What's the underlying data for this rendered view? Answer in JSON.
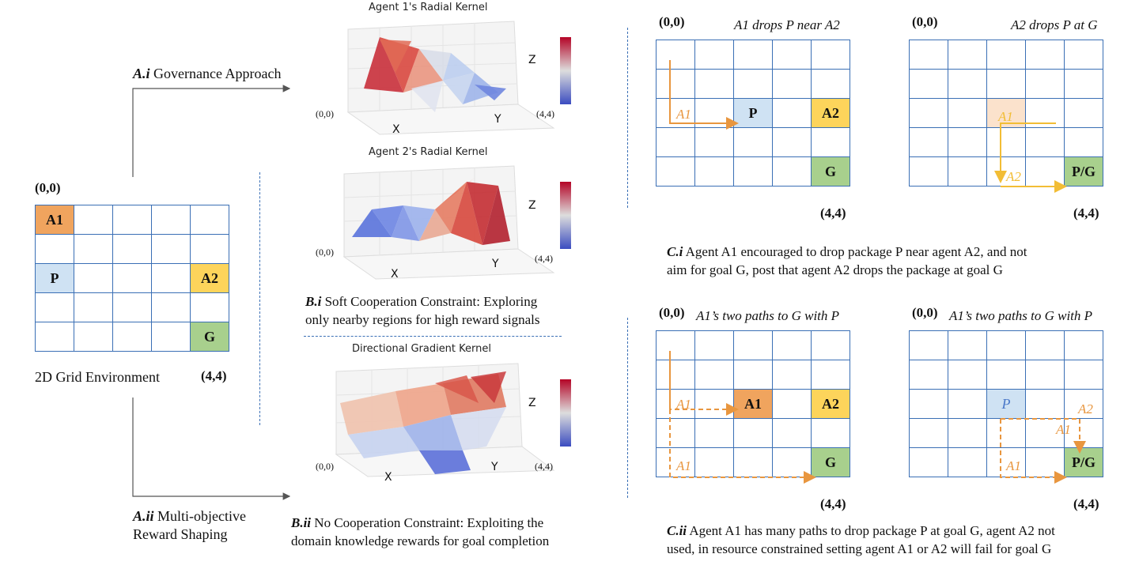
{
  "env": {
    "origin": "(0,0)",
    "end": "(4,4)",
    "caption": "2D Grid Environment",
    "cells": {
      "a1": "A1",
      "p": "P",
      "a2": "A2",
      "g": "G"
    }
  },
  "approaches": {
    "ai_bold": "A.i",
    "ai_text": " Governance Approach",
    "aii_bold": "A.ii",
    "aii_text1": " Multi-objective",
    "aii_text2": "Reward Shaping"
  },
  "kernels": {
    "k1_title": "Agent 1's Radial Kernel",
    "k2_title": "Agent 2's Radial Kernel",
    "k3_title": "Directional Gradient Kernel",
    "axis_x": "X",
    "axis_y": "Y",
    "axis_z": "Z",
    "origin": "(0,0)",
    "end": "(4,4)",
    "bi_bold": "B.i",
    "bi_text1": " Soft Cooperation Constraint: Exploring",
    "bi_text2": "only nearby regions for high reward signals",
    "bii_bold": "B.ii",
    "bii_text1": " No Cooperation Constraint: Exploiting the",
    "bii_text2": "domain knowledge rewards for goal completion"
  },
  "panels": {
    "origin": "(0,0)",
    "end": "(4,4)",
    "c1_left_title": "A1 drops P near A2",
    "c1_right_title": "A2 drops P at G",
    "c2_left_title": "A1’s two paths to G with P",
    "c2_right_title": "A1’s two paths to G with P",
    "cells": {
      "a1": "A1",
      "a2": "A2",
      "p": "P",
      "g": "G",
      "pg": "P/G"
    },
    "path_a1": "A1",
    "path_a2": "A2",
    "ci_bold": "C.i",
    "ci_line1": " Agent A1 encouraged to drop package P near agent A2, and not",
    "ci_line2": "aim for goal G, post that agent A2 drops the package at goal G",
    "cii_bold": "C.ii",
    "cii_line1": " Agent A1 has many paths to drop package P at goal G, agent A2 not",
    "cii_line2": "used, in resource constrained setting agent A1 or A2 will fail for goal G"
  },
  "colors": {
    "grid_line": "#3a6fb5",
    "agent1": "#f0a45e",
    "agent2": "#fdd45b",
    "package": "#cfe2f3",
    "goal": "#a8d08d",
    "path_orange": "#e8963f",
    "path_yellow": "#f2bd35"
  }
}
